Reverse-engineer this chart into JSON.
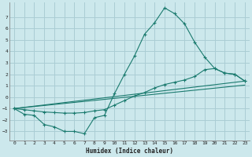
{
  "xlabel": "Humidex (Indice chaleur)",
  "xlim": [
    -0.5,
    23.5
  ],
  "ylim": [
    -3.8,
    8.3
  ],
  "yticks": [
    -3,
    -2,
    -1,
    0,
    1,
    2,
    3,
    4,
    5,
    6,
    7
  ],
  "xticks": [
    0,
    1,
    2,
    3,
    4,
    5,
    6,
    7,
    8,
    9,
    10,
    11,
    12,
    13,
    14,
    15,
    16,
    17,
    18,
    19,
    20,
    21,
    22,
    23
  ],
  "bg_color": "#cce8ec",
  "grid_color": "#aacdd4",
  "line_color": "#1a7a6e",
  "line1_x": [
    0,
    1,
    2,
    3,
    4,
    5,
    6,
    7,
    8,
    9,
    10,
    11,
    12,
    13,
    14,
    15,
    16,
    17,
    18,
    19,
    20,
    21,
    22,
    23
  ],
  "line1_y": [
    -1.0,
    -1.5,
    -1.6,
    -2.4,
    -2.6,
    -3.0,
    -3.0,
    -3.2,
    -1.8,
    -1.6,
    0.3,
    2.0,
    3.6,
    5.5,
    6.5,
    7.8,
    7.3,
    6.4,
    4.8,
    3.5,
    2.5,
    2.1,
    2.0,
    1.4
  ],
  "line2_x": [
    0,
    1,
    2,
    3,
    4,
    5,
    6,
    7,
    8,
    9,
    10,
    11,
    12,
    13,
    14,
    15,
    16,
    17,
    18,
    19,
    20,
    21,
    22,
    23
  ],
  "line2_y": [
    -1.0,
    -1.1,
    -1.2,
    -1.3,
    -1.35,
    -1.4,
    -1.4,
    -1.35,
    -1.2,
    -1.1,
    -0.7,
    -0.3,
    0.1,
    0.4,
    0.8,
    1.1,
    1.3,
    1.5,
    1.8,
    2.4,
    2.5,
    2.1,
    2.0,
    1.4
  ],
  "line3_x": [
    0,
    23
  ],
  "line3_y": [
    -1.0,
    1.05
  ],
  "line4_x": [
    0,
    23
  ],
  "line4_y": [
    -1.0,
    1.4
  ]
}
